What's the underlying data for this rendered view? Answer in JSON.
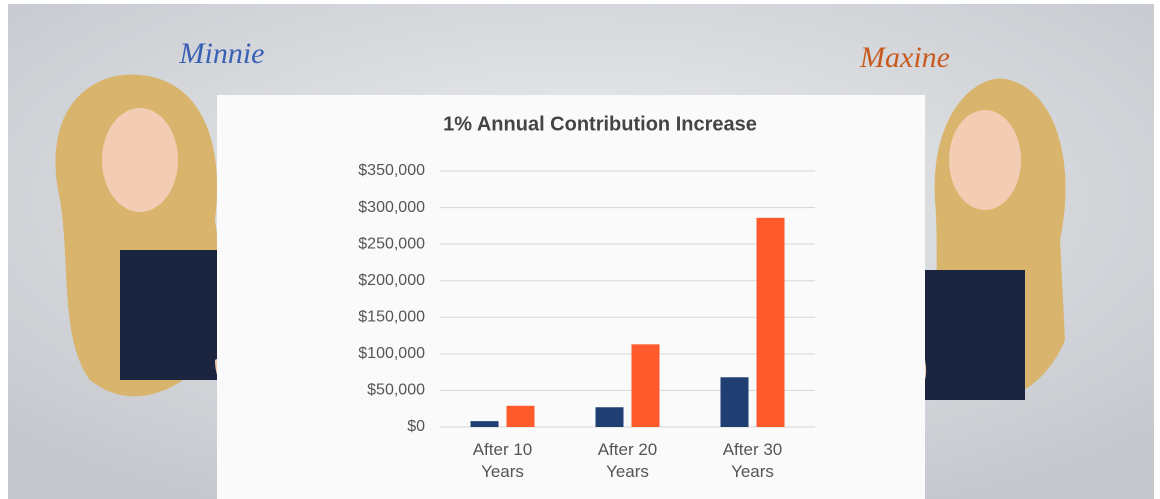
{
  "chart_data": {
    "type": "bar",
    "title": "1% Annual Contribution Increase",
    "categories": [
      "After 10 Years",
      "After 20 Years",
      "After 30 Years"
    ],
    "series": [
      {
        "name": "Minnie",
        "color": "#1f3f73",
        "values": [
          8000,
          27000,
          68000
        ]
      },
      {
        "name": "Maxine",
        "color": "#ff5a2c",
        "values": [
          29000,
          113000,
          286000
        ]
      }
    ],
    "ylim": [
      0,
      350000
    ],
    "yticks": [
      {
        "value": 0,
        "label": "$0"
      },
      {
        "value": 50000,
        "label": "$50,000"
      },
      {
        "value": 100000,
        "label": "$100,000"
      },
      {
        "value": 150000,
        "label": "$150,000"
      },
      {
        "value": 200000,
        "label": "$200,000"
      },
      {
        "value": 250000,
        "label": "$250,000"
      },
      {
        "value": 300000,
        "label": "$300,000"
      },
      {
        "value": 350000,
        "label": "$350,000"
      }
    ],
    "grid": true
  }
}
